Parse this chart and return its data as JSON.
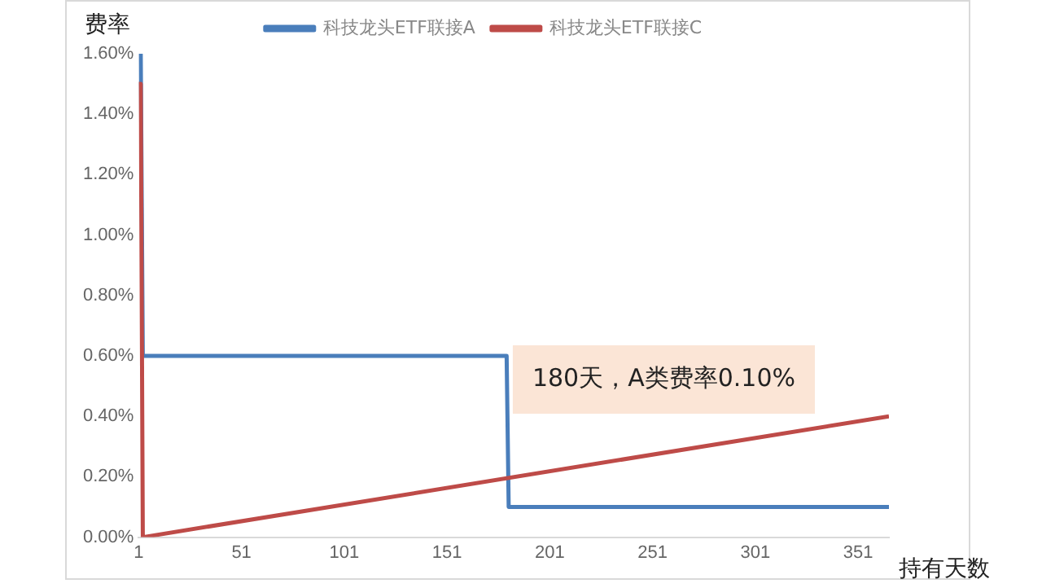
{
  "chart_data": {
    "type": "line",
    "ylabel": "费率",
    "xlabel": "持有天数",
    "legend": "top",
    "grid": false,
    "marker": "none",
    "line_style": "solid",
    "xlim": [
      1,
      366
    ],
    "xticks": [
      1,
      51,
      101,
      151,
      201,
      251,
      301,
      351
    ],
    "ylim": [
      0,
      1.6
    ],
    "yticks": [
      {
        "value": 0,
        "label": "0.00%"
      },
      {
        "value": 0.2,
        "label": "0.20%"
      },
      {
        "value": 0.4,
        "label": "0.40%"
      },
      {
        "value": 0.6,
        "label": "0.60%"
      },
      {
        "value": 0.8,
        "label": "0.80%"
      },
      {
        "value": 1,
        "label": "1.00%"
      },
      {
        "value": 1.2,
        "label": "1.20%"
      },
      {
        "value": 1.4,
        "label": "1.40%"
      },
      {
        "value": 1.6,
        "label": "1.60%"
      }
    ],
    "series": [
      {
        "name": "科技龙头ETF联接A",
        "color": "#4a7ebb",
        "x": [
          1,
          2,
          3,
          180,
          181,
          366
        ],
        "values": [
          1.6,
          1.6,
          0.6,
          0.6,
          0.1,
          0.1
        ]
      },
      {
        "name": "科技龙头ETF联接C",
        "color": "#be4b48",
        "x": [
          1,
          2,
          3,
          366
        ],
        "values": [
          1.5,
          1.5,
          0,
          0.4
        ]
      }
    ],
    "annotations": [
      "180天，A类费率0.10%"
    ]
  }
}
